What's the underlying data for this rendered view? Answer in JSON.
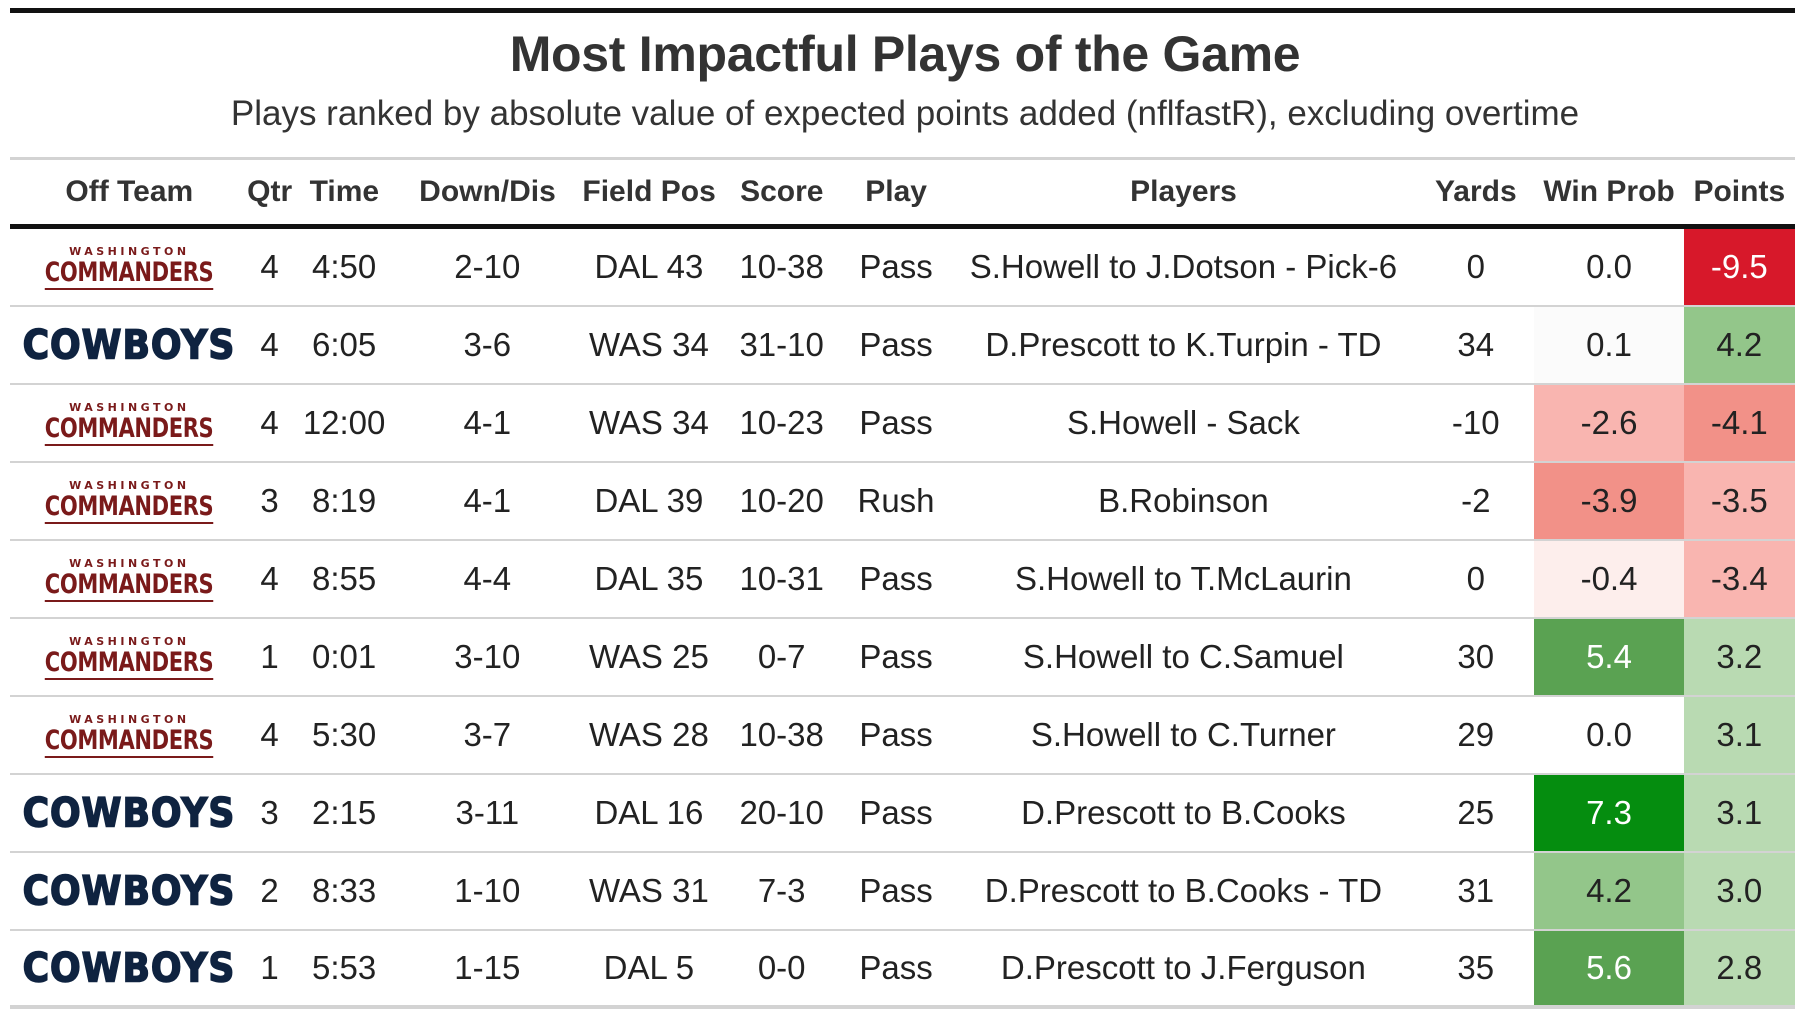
{
  "title": "Most Impactful Plays of the Game",
  "subtitle": "Plays ranked by absolute value of expected points added (nflfastR), excluding overtime",
  "columns": {
    "team": "Off Team",
    "qtr": "Qtr",
    "time": "Time",
    "down": "Down/Dis",
    "field_pos": "Field Pos",
    "score": "Score",
    "play": "Play",
    "players": "Players",
    "yards": "Yards",
    "win_prob": "Win Prob",
    "points": "Points"
  },
  "logos": {
    "WAS": {
      "top": "WASHINGTON",
      "main": "COMMANDERS",
      "color": "#7a1a1a"
    },
    "DAL": {
      "main": "COWBOYS",
      "color": "#0f2340"
    }
  },
  "colors": {
    "strong_red": "#d7182a",
    "red_light": "#f9b5b0",
    "red_mid": "#f29188",
    "green_dark": "#058d0f",
    "green_mid": "#5aa252",
    "green_light": "#b9dab2"
  },
  "chart_data": {
    "type": "table",
    "rows": [
      {
        "team": "WAS",
        "qtr": "4",
        "time": "4:50",
        "down": "2-10",
        "field_pos": "DAL 43",
        "score": "10-38",
        "play": "Pass",
        "players": "S.Howell to J.Dotson - Pick-6",
        "yards": "0",
        "win_prob": "0.0",
        "points": "-9.5"
      },
      {
        "team": "DAL",
        "qtr": "4",
        "time": "6:05",
        "down": "3-6",
        "field_pos": "WAS 34",
        "score": "31-10",
        "play": "Pass",
        "players": "D.Prescott to K.Turpin - TD",
        "yards": "34",
        "win_prob": "0.1",
        "points": "4.2"
      },
      {
        "team": "WAS",
        "qtr": "4",
        "time": "12:00",
        "down": "4-1",
        "field_pos": "WAS 34",
        "score": "10-23",
        "play": "Pass",
        "players": "S.Howell - Sack",
        "yards": "-10",
        "win_prob": "-2.6",
        "points": "-4.1"
      },
      {
        "team": "WAS",
        "qtr": "3",
        "time": "8:19",
        "down": "4-1",
        "field_pos": "DAL 39",
        "score": "10-20",
        "play": "Rush",
        "players": "B.Robinson",
        "yards": "-2",
        "win_prob": "-3.9",
        "points": "-3.5"
      },
      {
        "team": "WAS",
        "qtr": "4",
        "time": "8:55",
        "down": "4-4",
        "field_pos": "DAL 35",
        "score": "10-31",
        "play": "Pass",
        "players": "S.Howell to T.McLaurin",
        "yards": "0",
        "win_prob": "-0.4",
        "points": "-3.4"
      },
      {
        "team": "WAS",
        "qtr": "1",
        "time": "0:01",
        "down": "3-10",
        "field_pos": "WAS 25",
        "score": "0-7",
        "play": "Pass",
        "players": "S.Howell to C.Samuel",
        "yards": "30",
        "win_prob": "5.4",
        "points": "3.2"
      },
      {
        "team": "WAS",
        "qtr": "4",
        "time": "5:30",
        "down": "3-7",
        "field_pos": "WAS 28",
        "score": "10-38",
        "play": "Pass",
        "players": "S.Howell to C.Turner",
        "yards": "29",
        "win_prob": "0.0",
        "points": "3.1"
      },
      {
        "team": "DAL",
        "qtr": "3",
        "time": "2:15",
        "down": "3-11",
        "field_pos": "DAL 16",
        "score": "20-10",
        "play": "Pass",
        "players": "D.Prescott to B.Cooks",
        "yards": "25",
        "win_prob": "7.3",
        "points": "3.1"
      },
      {
        "team": "DAL",
        "qtr": "2",
        "time": "8:33",
        "down": "1-10",
        "field_pos": "WAS 31",
        "score": "7-3",
        "play": "Pass",
        "players": "D.Prescott to B.Cooks - TD",
        "yards": "31",
        "win_prob": "4.2",
        "points": "3.0"
      },
      {
        "team": "DAL",
        "qtr": "1",
        "time": "5:53",
        "down": "1-15",
        "field_pos": "DAL 5",
        "score": "0-0",
        "play": "Pass",
        "players": "D.Prescott to J.Ferguson",
        "yards": "35",
        "win_prob": "5.6",
        "points": "2.8"
      }
    ]
  }
}
